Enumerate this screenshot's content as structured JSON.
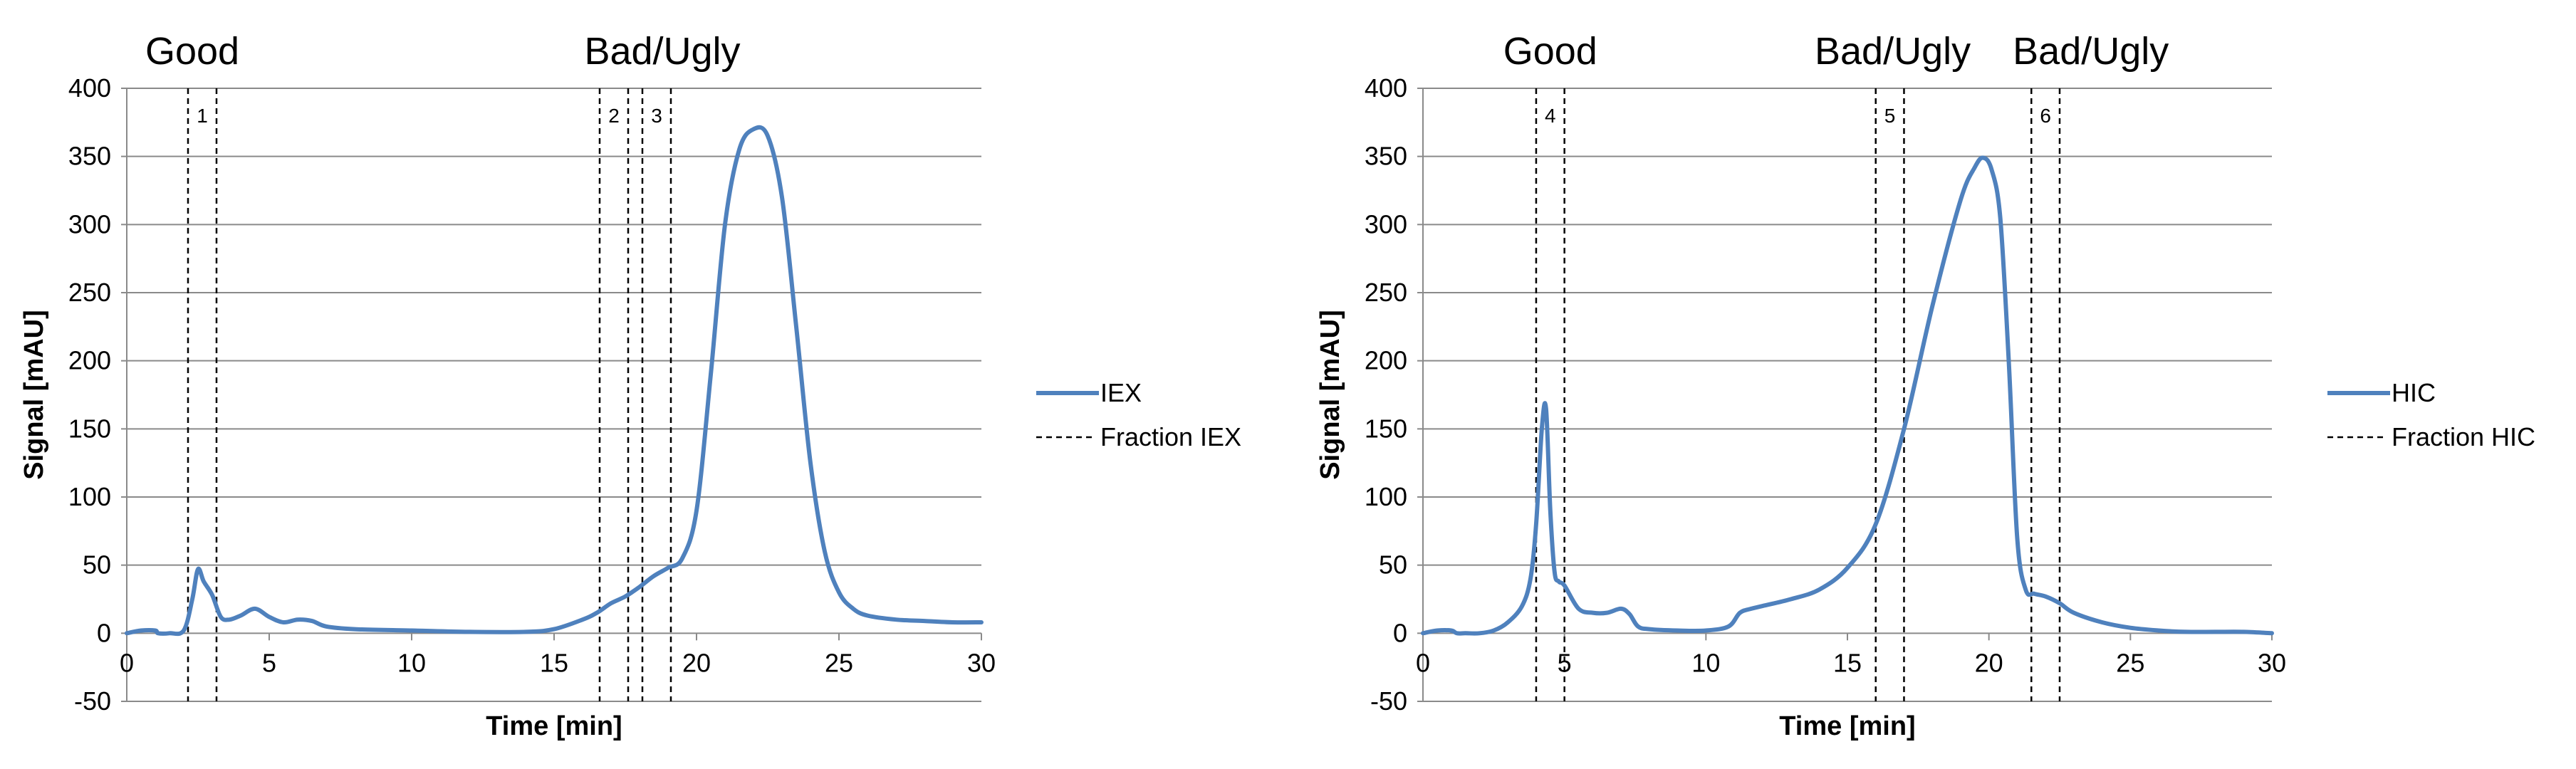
{
  "chart_data": [
    {
      "type": "line",
      "xlabel": "Time [min]",
      "ylabel": "Signal [mAU]",
      "xlim": [
        0,
        30
      ],
      "ylim": [
        -50,
        400
      ],
      "xticks": [
        0,
        5,
        10,
        15,
        20,
        25,
        30
      ],
      "yticks": [
        -50,
        0,
        50,
        100,
        150,
        200,
        250,
        300,
        350,
        400
      ],
      "grid": "horizontal",
      "legend_position": "right",
      "series": [
        {
          "name": "IEX",
          "color": "#4f81bd",
          "x": [
            0,
            0.5,
            1,
            1.1,
            1.5,
            2,
            2.3,
            2.5,
            2.7,
            3,
            3.3,
            3.6,
            4,
            4.5,
            5,
            5.5,
            6,
            6.5,
            7,
            8,
            10,
            12,
            14,
            15,
            16,
            16.5,
            17,
            17.5,
            18,
            18.5,
            19,
            19.5,
            20,
            20.5,
            21,
            21.5,
            22,
            22.5,
            23,
            23.5,
            24,
            24.5,
            25,
            25.5,
            26,
            27,
            28,
            29,
            30
          ],
          "y": [
            0,
            2,
            2,
            0,
            0,
            2,
            25,
            47,
            38,
            28,
            12,
            10,
            13,
            18,
            12,
            8,
            10,
            9,
            5,
            3,
            2,
            1,
            1,
            3,
            10,
            15,
            22,
            27,
            34,
            42,
            48,
            55,
            90,
            190,
            300,
            355,
            370,
            365,
            320,
            225,
            125,
            60,
            30,
            18,
            13,
            10,
            9,
            8,
            8
          ]
        },
        {
          "name": "HIC",
          "color": "#4f81bd",
          "x": [
            0,
            0.5,
            1,
            1.2,
            1.5,
            2,
            2.5,
            3,
            3.5,
            3.8,
            4,
            4.2,
            4.35,
            4.5,
            4.65,
            4.8,
            5,
            5.5,
            6,
            6.5,
            7,
            7.3,
            7.6,
            8,
            9,
            10,
            10.8,
            11.2,
            11.6,
            12,
            13,
            14,
            15,
            16,
            17,
            18,
            19,
            19.5,
            19.8,
            20.1,
            20.4,
            20.7,
            21,
            21.3,
            21.6,
            22,
            22.5,
            23,
            24,
            25,
            26,
            27,
            28,
            29,
            30
          ],
          "y": [
            0,
            2,
            2,
            0,
            0,
            0,
            2,
            8,
            20,
            40,
            80,
            150,
            165,
            90,
            45,
            38,
            35,
            18,
            15,
            15,
            18,
            14,
            5,
            3,
            2,
            2,
            5,
            15,
            18,
            20,
            25,
            32,
            48,
            80,
            150,
            240,
            318,
            342,
            349,
            340,
            305,
            200,
            70,
            32,
            29,
            27,
            22,
            15,
            8,
            4,
            2,
            1,
            1,
            1,
            0
          ]
        }
      ],
      "fraction_series": [
        "Fraction IEX",
        "Fraction HIC"
      ]
    }
  ],
  "panels": [
    {
      "series_label": "IEX",
      "fraction_label": "Fraction IEX",
      "xlabel": "Time [min]",
      "ylabel": "Signal [mAU]",
      "fractions": [
        {
          "label": "1",
          "start": 2.15,
          "end": 3.15
        },
        {
          "label": "2",
          "start": 16.6,
          "end": 17.6
        },
        {
          "label": "3",
          "start": 18.1,
          "end": 19.1
        }
      ],
      "regions": [
        {
          "text": "Good",
          "x": 2.3
        },
        {
          "text": "Bad/Ugly",
          "x": 18.8
        }
      ]
    },
    {
      "series_label": "HIC",
      "fraction_label": "Fraction HIC",
      "xlabel": "Time [min]",
      "ylabel": "Signal [mAU]",
      "fractions": [
        {
          "label": "4",
          "start": 4.0,
          "end": 5.0
        },
        {
          "label": "5",
          "start": 16.0,
          "end": 17.0
        },
        {
          "label": "6",
          "start": 21.5,
          "end": 22.5
        }
      ],
      "regions": [
        {
          "text": "Good",
          "x": 4.5
        },
        {
          "text": "Bad/Ugly",
          "x": 16.6
        },
        {
          "text": "Bad/Ugly",
          "x": 23.6
        }
      ]
    }
  ]
}
